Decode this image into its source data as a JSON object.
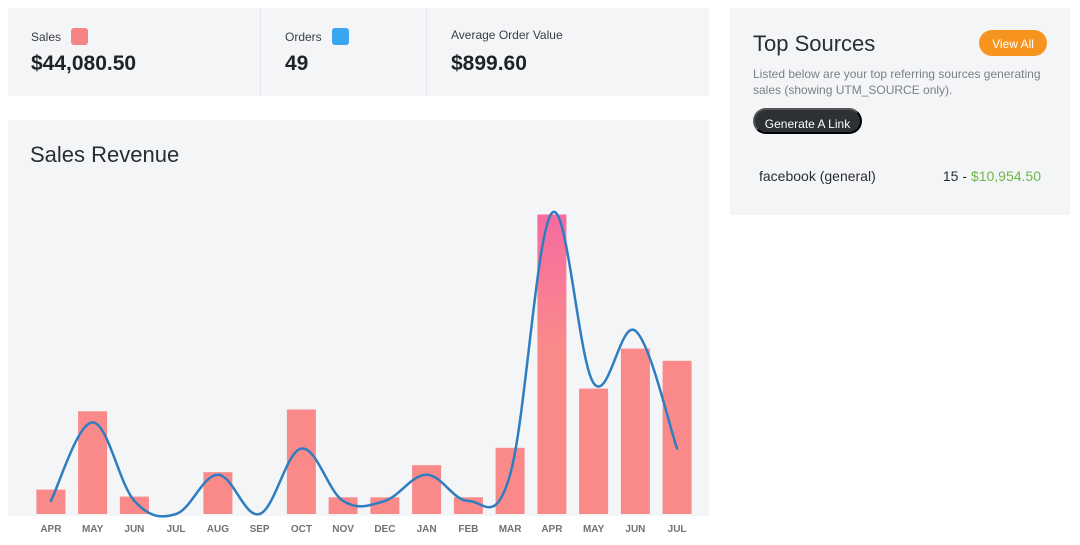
{
  "stats": {
    "sales_label": "Sales",
    "sales_value": "$44,080.50",
    "sales_color": "#f78484",
    "orders_label": "Orders",
    "orders_value": "49",
    "orders_color": "#3ba6f0",
    "aov_label": "Average Order Value",
    "aov_value": "$899.60"
  },
  "chart_title": "Sales Revenue",
  "sources": {
    "title": "Top Sources",
    "view_all_label": "View All",
    "description": "Listed below are your top referring sources generating sales (showing UTM_SOURCE only).",
    "generate_label": "Generate A Link",
    "items": [
      {
        "name": "facebook (general)",
        "count": "15",
        "separator": " - ",
        "amount": "$10,954.50"
      }
    ]
  },
  "colors": {
    "bar": "#fa8a8a",
    "bar_peak": "#f56ba0",
    "line": "#2f7dc1",
    "accent_orange": "#f7941d",
    "money_green": "#6fb64b"
  },
  "chart_data": {
    "type": "bar",
    "categories": [
      "APR",
      "MAY",
      "JUN",
      "JUL",
      "AUG",
      "SEP",
      "OCT",
      "NOV",
      "DEC",
      "JAN",
      "FEB",
      "MAR",
      "APR",
      "MAY",
      "JUN",
      "JUL"
    ],
    "series": [
      {
        "values": [
          700,
          2950,
          500,
          0,
          1200,
          0,
          3000,
          480,
          480,
          1400,
          480,
          1900,
          8600,
          3600,
          4750,
          4400
        ]
      },
      {
        "type": "line",
        "values": [
          1,
          7,
          1,
          0,
          3,
          0,
          5,
          1,
          1,
          3,
          1,
          3,
          23,
          10,
          14,
          5
        ]
      }
    ]
  }
}
